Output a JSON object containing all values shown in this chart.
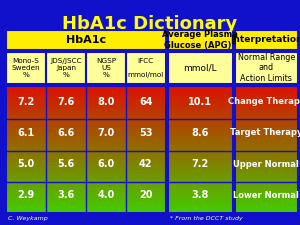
{
  "title": "HbA1c Dictionary",
  "title_color": "#FFFF00",
  "bg_color": "#1111cc",
  "header1_text": "HbA1c",
  "header2_text": "Average Plasma\nGlucose (APG)*",
  "header3_text": "Interpretation",
  "subheader1_cols": [
    "Mono-S\nSweden\n%",
    "JDS/JSCC\nJapan\n%",
    "NGSP\nUS\n%",
    "IFCC\n\nmmol/mol"
  ],
  "subheader2_text": "mmol/L",
  "subheader3_text": "Normal Range\nand\nAction Limits",
  "data_rows": [
    [
      "7.2",
      "7.6",
      "8.0",
      "64",
      "10.1",
      "Change Therapy"
    ],
    [
      "6.1",
      "6.6",
      "7.0",
      "53",
      "8.6",
      "Target Therapy"
    ],
    [
      "5.0",
      "5.6",
      "6.0",
      "42",
      "7.2",
      "Upper Normal"
    ],
    [
      "2.9",
      "3.6",
      "4.0",
      "20",
      "3.8",
      "Lower Normal"
    ]
  ],
  "gradient_top": "#dd1100",
  "gradient_bottom": "#44cc00",
  "footnote_left": "C. Weykamp",
  "footnote_right": "* From the DCCT study"
}
